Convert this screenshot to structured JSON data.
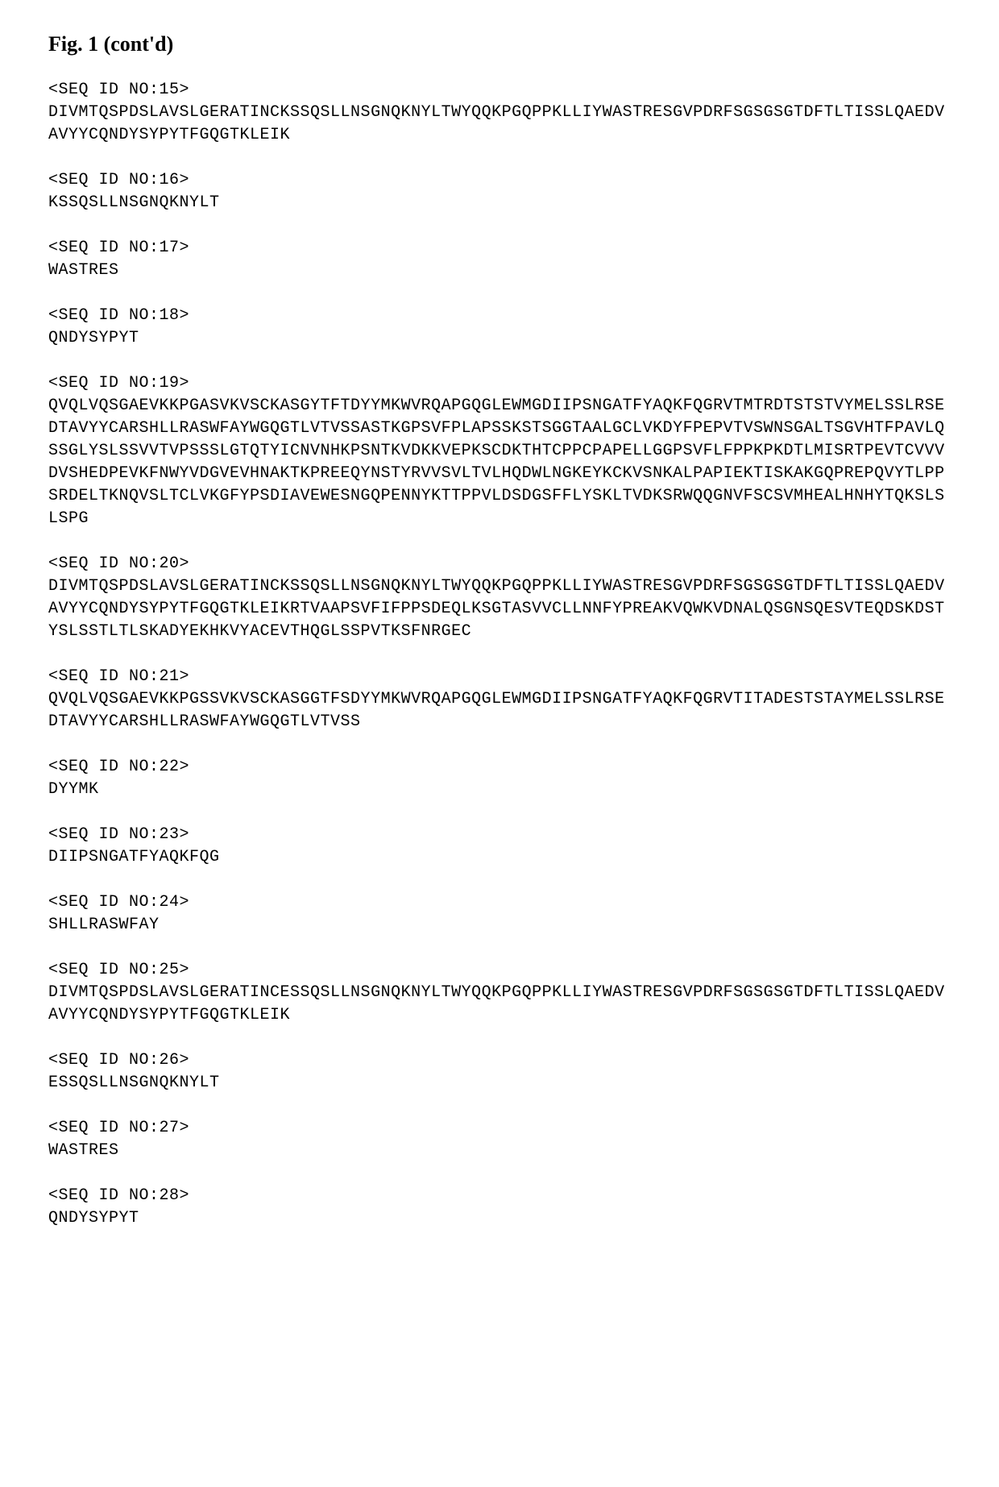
{
  "title": "Fig. 1 (cont'd)",
  "sequences": [
    {
      "header": "<SEQ ID NO:15>",
      "content": "DIVMTQSPDSLAVSLGERATINCKSSQSLLNSGNQKNYLTWYQQKPGQPPKLLIYWASTRESGVPDRFSGSGSGTDFTLTISSLQAEDVAVYYCQNDYSYPYTFGQGTKLEIK"
    },
    {
      "header": "<SEQ ID NO:16>",
      "content": "KSSQSLLNSGNQKNYLT"
    },
    {
      "header": "<SEQ ID NO:17>",
      "content": "WASTRES"
    },
    {
      "header": "<SEQ ID NO:18>",
      "content": "QNDYSYPYT"
    },
    {
      "header": "<SEQ ID NO:19>",
      "content": "QVQLVQSGAEVKKPGASVKVSCKASGYTFTDYYMKWVRQAPGQGLEWMGDIIPSNGATFYAQKFQGRVTMTRDTSTSTVYMELSSLRSEDTAVYYCARSHLLRASWFAYWGQGTLVTVSSASTKGPSVFPLAPSSKSTSGGTAALGCLVKDYFPEPVTVSWNSGALTSGVHTFPAVLQSSGLYSLSSVVTVPSSSLGTQTYICNVNHKPSNTKVDKKVEPKSCDKTHTCPPCPAPELLGGPSVFLFPPKPKDTLMISRTPEVTCVVVDVSHEDPEVKFNWYVDGVEVHNAKTKPREEQYNSTYRVVSVLTVLHQDWLNGKEYKCKVSNKALPAPIEKTISKAKGQPREPQVYTLPPSRDELTKNQVSLTCLVKGFYPSDIAVEWESNGQPENNYKTTPPVLDSDGSFFLYSKLTVDKSRWQQGNVFSCSVMHEALHNHYTQKSLSLSPG"
    },
    {
      "header": "<SEQ ID NO:20>",
      "content": "DIVMTQSPDSLAVSLGERATINCKSSQSLLNSGNQKNYLTWYQQKPGQPPKLLIYWASTRESGVPDRFSGSGSGTDFTLTISSLQAEDVAVYYCQNDYSYPYTFGQGTKLEIKRTVAAPSVFIFPPSDEQLKSGTASVVCLLNNFYPREAKVQWKVDNALQSGNSQESVTEQDSKDSTYSLSSTLTLSKADYEKHKVYACEVTHQGLSSPVTKSFNRGEC"
    },
    {
      "header": "<SEQ ID NO:21>",
      "content": "QVQLVQSGAEVKKPGSSVKVSCKASGGTFSDYYMKWVRQAPGQGLEWMGDIIPSNGATFYAQKFQGRVTITADESTSTAYMELSSLRSEDTAVYYCARSHLLRASWFAYWGQGTLVTVSS"
    },
    {
      "header": "<SEQ ID NO:22>",
      "content": "DYYMK"
    },
    {
      "header": "<SEQ ID NO:23>",
      "content": "DIIPSNGATFYAQKFQG"
    },
    {
      "header": "<SEQ ID NO:24>",
      "content": "SHLLRASWFAY"
    },
    {
      "header": "<SEQ ID NO:25>",
      "content": "DIVMTQSPDSLAVSLGERATINCESSQSLLNSGNQKNYLTWYQQKPGQPPKLLIYWASTRESGVPDRFSGSGSGTDFTLTISSLQAEDVAVYYCQNDYSYPYTFGQGTKLEIK"
    },
    {
      "header": "<SEQ ID NO:26>",
      "content": "ESSQSLLNSGNQKNYLT"
    },
    {
      "header": "<SEQ ID NO:27>",
      "content": "WASTRES"
    },
    {
      "header": "<SEQ ID NO:28>",
      "content": "QNDYSYPYT"
    }
  ]
}
